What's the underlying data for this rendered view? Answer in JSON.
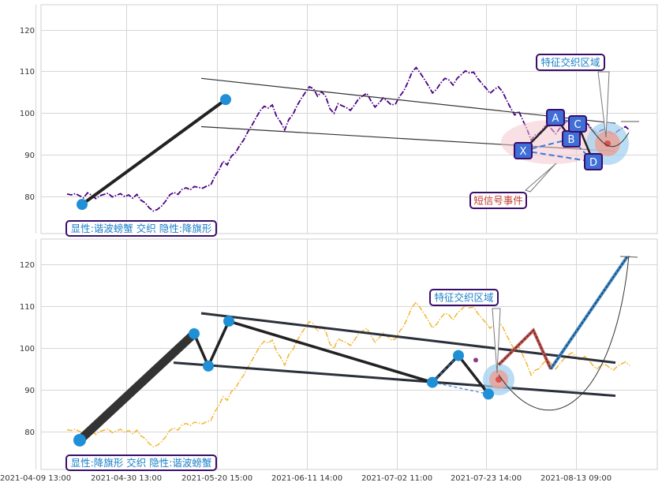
{
  "chart_data": [
    {
      "type": "line",
      "panel": "top",
      "ylim": [
        71,
        126
      ],
      "yticks": [
        80,
        90,
        100,
        110,
        120
      ],
      "grid": true,
      "price_color": "#4b0082",
      "price_style": "dash-dot",
      "price": [
        80.5,
        80.3,
        80.6,
        80.1,
        79.6,
        80.8,
        80.2,
        79.4,
        80.1,
        80.4,
        80.7,
        79.8,
        80.2,
        80.6,
        79.9,
        80.3,
        79.5,
        80.4,
        79.0,
        78.4,
        77.2,
        76.4,
        76.8,
        77.6,
        78.8,
        80.3,
        80.9,
        80.4,
        81.6,
        82.0,
        81.5,
        82.3,
        82.1,
        81.9,
        82.4,
        82.7,
        84.8,
        86.3,
        88.4,
        87.5,
        89.6,
        90.4,
        92.1,
        93.5,
        95.4,
        97.0,
        98.8,
        100.5,
        101.6,
        101.2,
        101.9,
        99.2,
        97.8,
        95.9,
        98.4,
        99.6,
        101.7,
        103.4,
        104.9,
        106.3,
        105.8,
        104.0,
        105.1,
        103.9,
        101.0,
        99.9,
        102.2,
        101.7,
        101.3,
        100.6,
        101.9,
        103.4,
        104.1,
        104.7,
        102.9,
        101.4,
        102.4,
        103.6,
        102.8,
        101.9,
        102.2,
        104.0,
        105.3,
        107.4,
        109.8,
        110.9,
        109.6,
        108.1,
        106.5,
        104.8,
        105.7,
        107.2,
        108.3,
        107.9,
        106.7,
        108.3,
        109.2,
        110.1,
        109.6,
        109.8,
        108.3,
        107.1,
        106.0,
        104.7,
        105.6,
        106.3,
        105.2,
        103.1,
        101.2,
        99.5,
        100.4,
        98.2,
        96.1,
        93.5,
        94.7,
        95.1,
        96.4,
        97.3,
        96.1,
        95.0,
        96.3,
        97.4,
        98.3,
        98.9,
        97.8,
        97.0,
        98.0,
        97.1,
        95.9,
        95.0,
        95.8,
        96.1,
        95.4,
        94.7,
        95.6,
        96.2,
        96.7,
        95.8
      ],
      "pattern_points": [
        {
          "time": "2021-04-09 13:00",
          "value": 78.0
        },
        {
          "time": "2021-05-20 15:00",
          "value": 103.2
        }
      ],
      "channel": {
        "upper": [
          [
            "2021-04-30 13:00",
            108.3
          ],
          [
            "2021-07-23 14:00",
            97.5
          ]
        ],
        "lower": [
          [
            "2021-04-30 13:00",
            96.7
          ],
          [
            "2021-07-23 14:00",
            90.8
          ]
        ]
      },
      "point_labels": [
        "X",
        "A",
        "B",
        "C",
        "D"
      ],
      "label": "显性:谐波螃蟹 交织 隐性:降旗形",
      "callout_zone": "特征交织区域",
      "callout_signal": "短信号事件"
    },
    {
      "type": "line",
      "panel": "bottom",
      "ylim": [
        71,
        126
      ],
      "yticks": [
        80,
        90,
        100,
        110,
        120
      ],
      "grid": true,
      "price_color": "#f2b632",
      "price_style": "dash-dot",
      "price": [
        80.5,
        80.3,
        80.6,
        80.1,
        79.6,
        80.8,
        80.2,
        79.4,
        80.1,
        80.4,
        80.7,
        79.8,
        80.2,
        80.6,
        79.9,
        80.3,
        79.5,
        80.4,
        79.0,
        78.4,
        77.2,
        76.4,
        76.8,
        77.6,
        78.8,
        80.3,
        80.9,
        80.4,
        81.6,
        82.0,
        81.5,
        82.3,
        82.1,
        81.9,
        82.4,
        82.7,
        84.8,
        86.3,
        88.4,
        87.5,
        89.6,
        90.4,
        92.1,
        93.5,
        95.4,
        97.0,
        98.8,
        100.5,
        101.6,
        101.2,
        101.9,
        99.2,
        97.8,
        95.9,
        98.4,
        99.6,
        101.7,
        103.4,
        104.9,
        106.3,
        105.8,
        104.0,
        105.1,
        103.9,
        101.0,
        99.9,
        102.2,
        101.7,
        101.3,
        100.6,
        101.9,
        103.4,
        104.1,
        104.7,
        102.9,
        101.4,
        102.4,
        103.6,
        102.8,
        101.9,
        102.2,
        104.0,
        105.3,
        107.4,
        109.8,
        110.9,
        109.6,
        108.1,
        106.5,
        104.8,
        105.7,
        107.2,
        108.3,
        107.9,
        106.7,
        108.3,
        109.2,
        110.1,
        109.6,
        109.8,
        108.3,
        107.1,
        106.0,
        104.7,
        105.6,
        106.3,
        105.2,
        103.1,
        101.2,
        99.5,
        100.4,
        98.2,
        96.1,
        93.5,
        94.7,
        95.1,
        96.4,
        97.3,
        96.1,
        95.0,
        96.3,
        97.4,
        98.3,
        98.9,
        97.8,
        97.0,
        98.0,
        97.1,
        95.9,
        95.0,
        95.8,
        96.1,
        95.4,
        94.7,
        95.6,
        96.2,
        96.7,
        95.8
      ],
      "pattern_points": [
        {
          "time": "2021-04-09 13:00",
          "value": 78.0
        },
        {
          "value": 103.4
        },
        {
          "value": 95.7
        },
        {
          "value": 106.4
        },
        {
          "value": 91.8
        },
        {
          "value": 98.2
        },
        {
          "value": 89.0
        }
      ],
      "channel": {
        "upper": [
          [
            "2021-04-30 13:00",
            108.3
          ],
          [
            "2021-07-23 14:00",
            96.5
          ]
        ],
        "lower": [
          [
            "2021-04-30 13:00",
            96.5
          ],
          [
            "2021-07-23 14:00",
            88.6
          ]
        ]
      },
      "projection": [
        96.0,
        104.2,
        95.0,
        121.8
      ],
      "label": "显性:降旗形 交织 隐性:谐波螃蟹",
      "callout_zone": "特征交织区域",
      "x_tick_labels": [
        "2021-04-09 13:00",
        "2021-04-30 13:00",
        "2021-05-20 15:00",
        "2021-06-11 14:00",
        "2021-07-02 11:00",
        "2021-07-23 14:00",
        "2021-08-13 09:00"
      ]
    }
  ]
}
